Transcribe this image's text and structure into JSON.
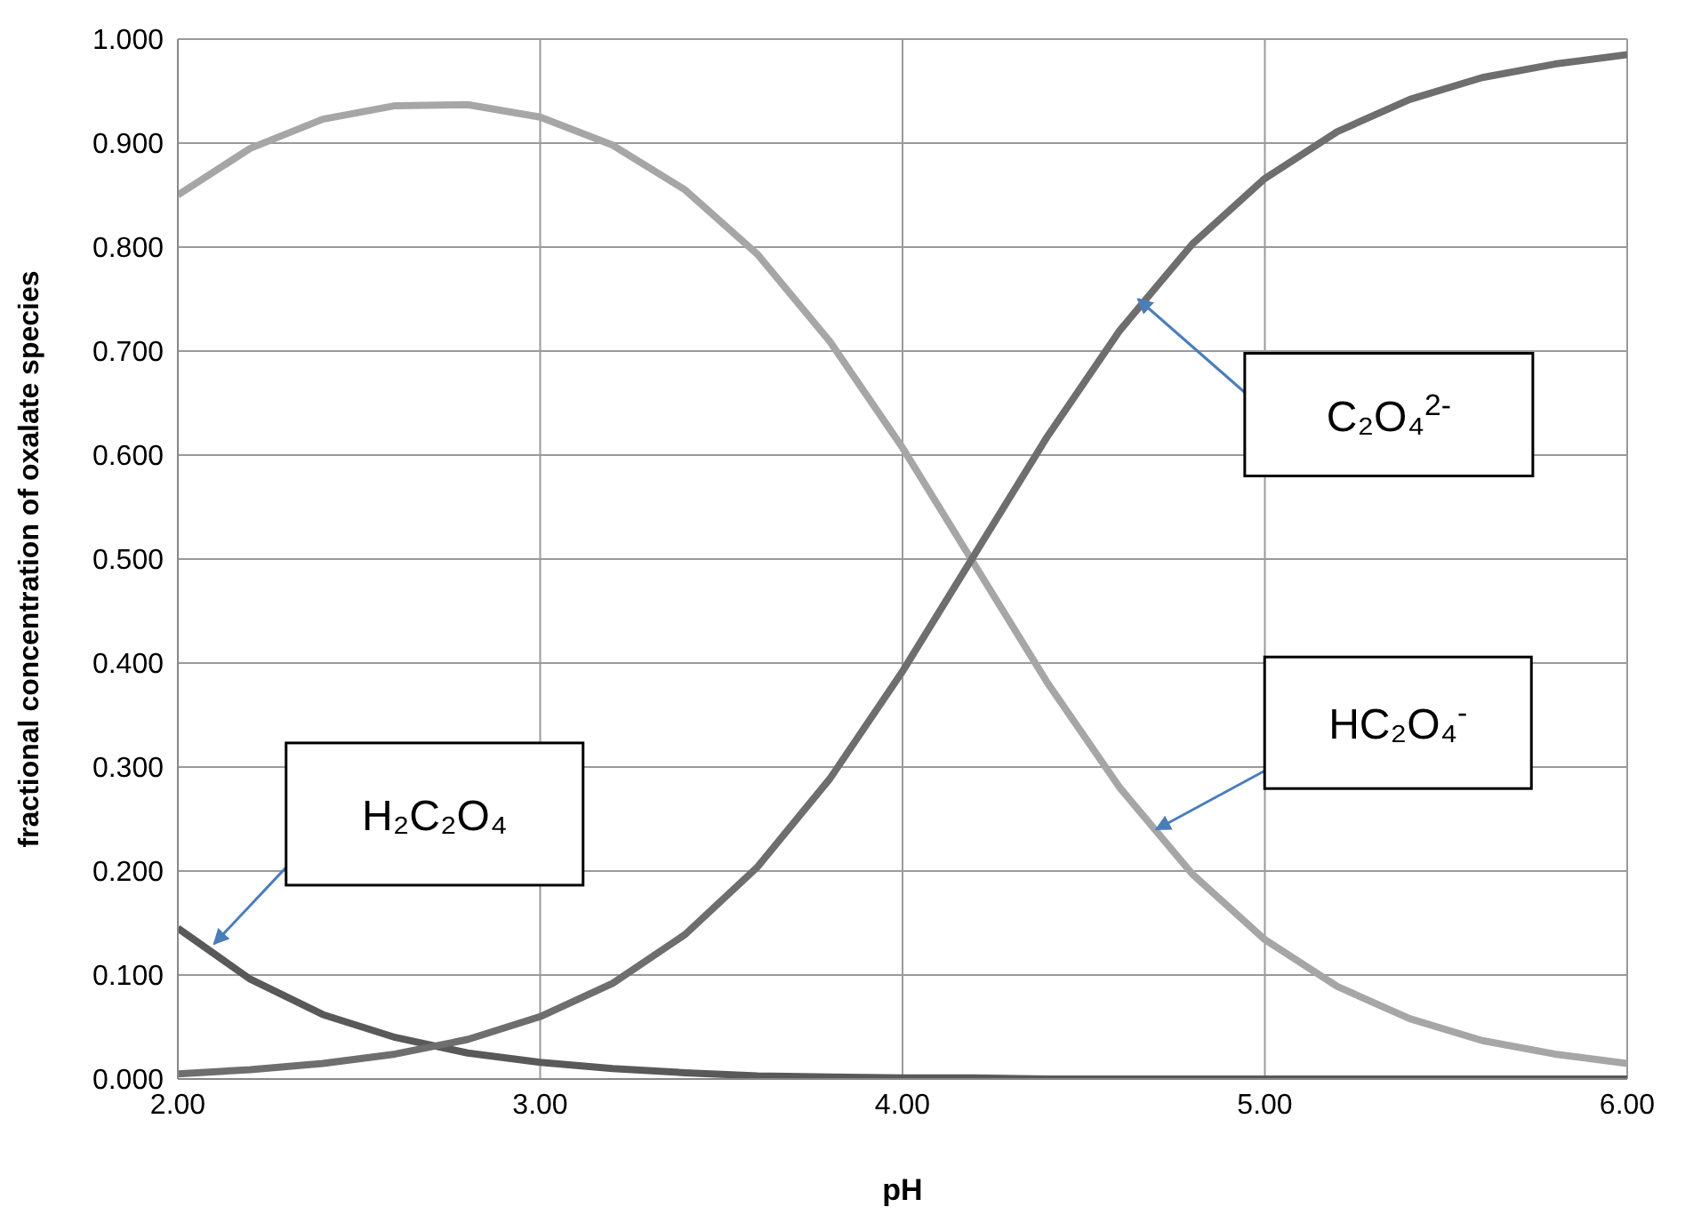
{
  "chart_data": {
    "type": "line",
    "xlabel": "pH",
    "ylabel": "fractional concentration of oxalate species",
    "x": [
      2.0,
      2.2,
      2.4,
      2.6,
      2.8,
      3.0,
      3.2,
      3.4,
      3.6,
      3.8,
      4.0,
      4.2,
      4.4,
      4.6,
      4.8,
      5.0,
      5.2,
      5.4,
      5.6,
      5.8,
      6.0
    ],
    "series": [
      {
        "color": "#595959",
        "values": [
          0.145,
          0.096,
          0.062,
          0.04,
          0.025,
          0.016,
          0.01,
          0.006,
          0.003,
          0.002,
          0.001,
          0.001,
          0,
          0,
          0,
          0,
          0,
          0,
          0,
          0,
          0
        ]
      },
      {
        "color": "#a6a6a6",
        "values": [
          0.85,
          0.895,
          0.923,
          0.936,
          0.937,
          0.925,
          0.898,
          0.855,
          0.793,
          0.709,
          0.607,
          0.494,
          0.381,
          0.28,
          0.197,
          0.134,
          0.089,
          0.058,
          0.037,
          0.024,
          0.015
        ]
      },
      {
        "color": "#6e6e6e",
        "values": [
          0.005,
          0.009,
          0.015,
          0.024,
          0.038,
          0.06,
          0.092,
          0.139,
          0.204,
          0.289,
          0.392,
          0.505,
          0.618,
          0.72,
          0.803,
          0.866,
          0.911,
          0.942,
          0.963,
          0.976,
          0.985
        ]
      }
    ],
    "xlim": [
      2,
      6
    ],
    "xticks": [
      {
        "value": 2,
        "label": "2.00"
      },
      {
        "value": 3,
        "label": "3.00"
      },
      {
        "value": 4,
        "label": "4.00"
      },
      {
        "value": 5,
        "label": "5.00"
      },
      {
        "value": 6,
        "label": "6.00"
      }
    ],
    "ylim": [
      0,
      1
    ],
    "yticks": [
      {
        "value": 0,
        "label": "0.000"
      },
      {
        "value": 0.1,
        "label": "0.100"
      },
      {
        "value": 0.2,
        "label": "0.200"
      },
      {
        "value": 0.3,
        "label": "0.300"
      },
      {
        "value": 0.4,
        "label": "0.400"
      },
      {
        "value": 0.5,
        "label": "0.500"
      },
      {
        "value": 0.6,
        "label": "0.600"
      },
      {
        "value": 0.7,
        "label": "0.700"
      },
      {
        "value": 0.8,
        "label": "0.800"
      },
      {
        "value": 0.9,
        "label": "0.900"
      },
      {
        "value": 1,
        "label": "1.000"
      }
    ],
    "grid": true,
    "legend": false,
    "marker": "none",
    "line_style": "solid",
    "annotations": [
      "H₂C₂O₄",
      "C₂O₄$^{2-}$",
      "HC₂O₄$^{-}$"
    ]
  }
}
